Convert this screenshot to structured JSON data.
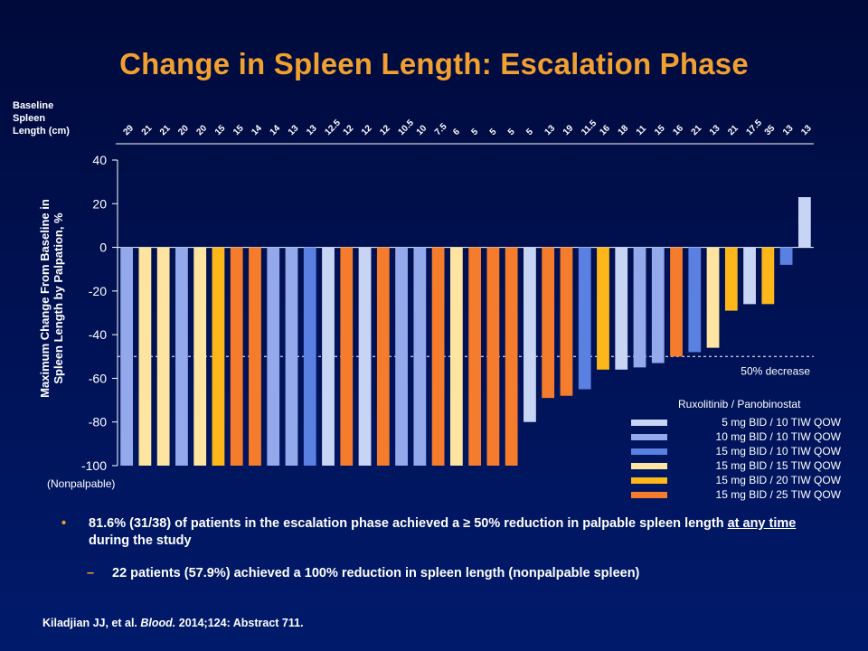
{
  "title": "Change in Spleen Length: Escalation Phase",
  "baseline_header": [
    "Baseline",
    "Spleen",
    "Length (cm)"
  ],
  "y_axis_title": [
    "Maximum Change From Baseline in",
    "Spleen Length by Palpation, %"
  ],
  "nonpalpable_label": "(Nonpalpable)",
  "threshold_label": "50% decrease",
  "legend": {
    "title": "Ruxolitinib  / Panobinostat",
    "items": [
      {
        "label": "5 mg BID / 10 TIW QOW",
        "color": "#c8d4f4"
      },
      {
        "label": "10 mg BID / 10 TIW QOW",
        "color": "#93a9ec"
      },
      {
        "label": "15 mg BID / 10 TIW QOW",
        "color": "#5a80e2"
      },
      {
        "label": "15 mg BID / 15 TIW QOW",
        "color": "#fde4a0"
      },
      {
        "label": "15 mg BID / 20 TIW QOW",
        "color": "#fdb71a"
      },
      {
        "label": "15 mg BID / 25 TIW QOW",
        "color": "#f47c2c"
      }
    ]
  },
  "chart_data": {
    "type": "bar",
    "title": "Change in Spleen Length: Escalation Phase",
    "ylabel": "Maximum Change From Baseline in Spleen Length by Palpation, %",
    "ylim": [
      -100,
      40
    ],
    "yticks": [
      40,
      20,
      0,
      -20,
      -40,
      -60,
      -80,
      -100
    ],
    "threshold": -50,
    "categories": [
      "29",
      "21",
      "21",
      "20",
      "20",
      "15",
      "15",
      "14",
      "14",
      "13",
      "13",
      "12.5",
      "12",
      "12",
      "12",
      "10.5",
      "10",
      "7.5",
      "6",
      "5",
      "5",
      "5",
      "5",
      "13",
      "19",
      "11.5",
      "16",
      "18",
      "11",
      "15",
      "16",
      "21",
      "13",
      "21",
      "17.5",
      "35",
      "13",
      "13"
    ],
    "values": [
      -100,
      -100,
      -100,
      -100,
      -100,
      -100,
      -100,
      -100,
      -100,
      -100,
      -100,
      -100,
      -100,
      -100,
      -100,
      -100,
      -100,
      -100,
      -100,
      -100,
      -100,
      -100,
      -80,
      -69,
      -68,
      -65,
      -56,
      -56,
      -55,
      -53,
      -50,
      -48,
      -46,
      -29,
      -26,
      -26,
      -8,
      23
    ],
    "dose_groups": [
      1,
      3,
      3,
      1,
      3,
      4,
      5,
      5,
      1,
      1,
      2,
      0,
      5,
      0,
      5,
      1,
      1,
      5,
      3,
      5,
      5,
      5,
      0,
      5,
      5,
      2,
      4,
      0,
      1,
      1,
      5,
      2,
      3,
      4,
      0,
      4,
      2,
      0
    ]
  },
  "bullets": {
    "main_pre": "81.6% (31/38) of patients in the escalation phase achieved a ≥ 50% reduction in palpable spleen length ",
    "main_underline": "at any time",
    "main_post": " during the study",
    "sub": "22 patients (57.9%) achieved a 100% reduction in spleen length (nonpalpable spleen)"
  },
  "citation": {
    "pre": "Kiladjian JJ, et al. ",
    "journal": "Blood.",
    "post": " 2014;124: Abstract 711."
  }
}
